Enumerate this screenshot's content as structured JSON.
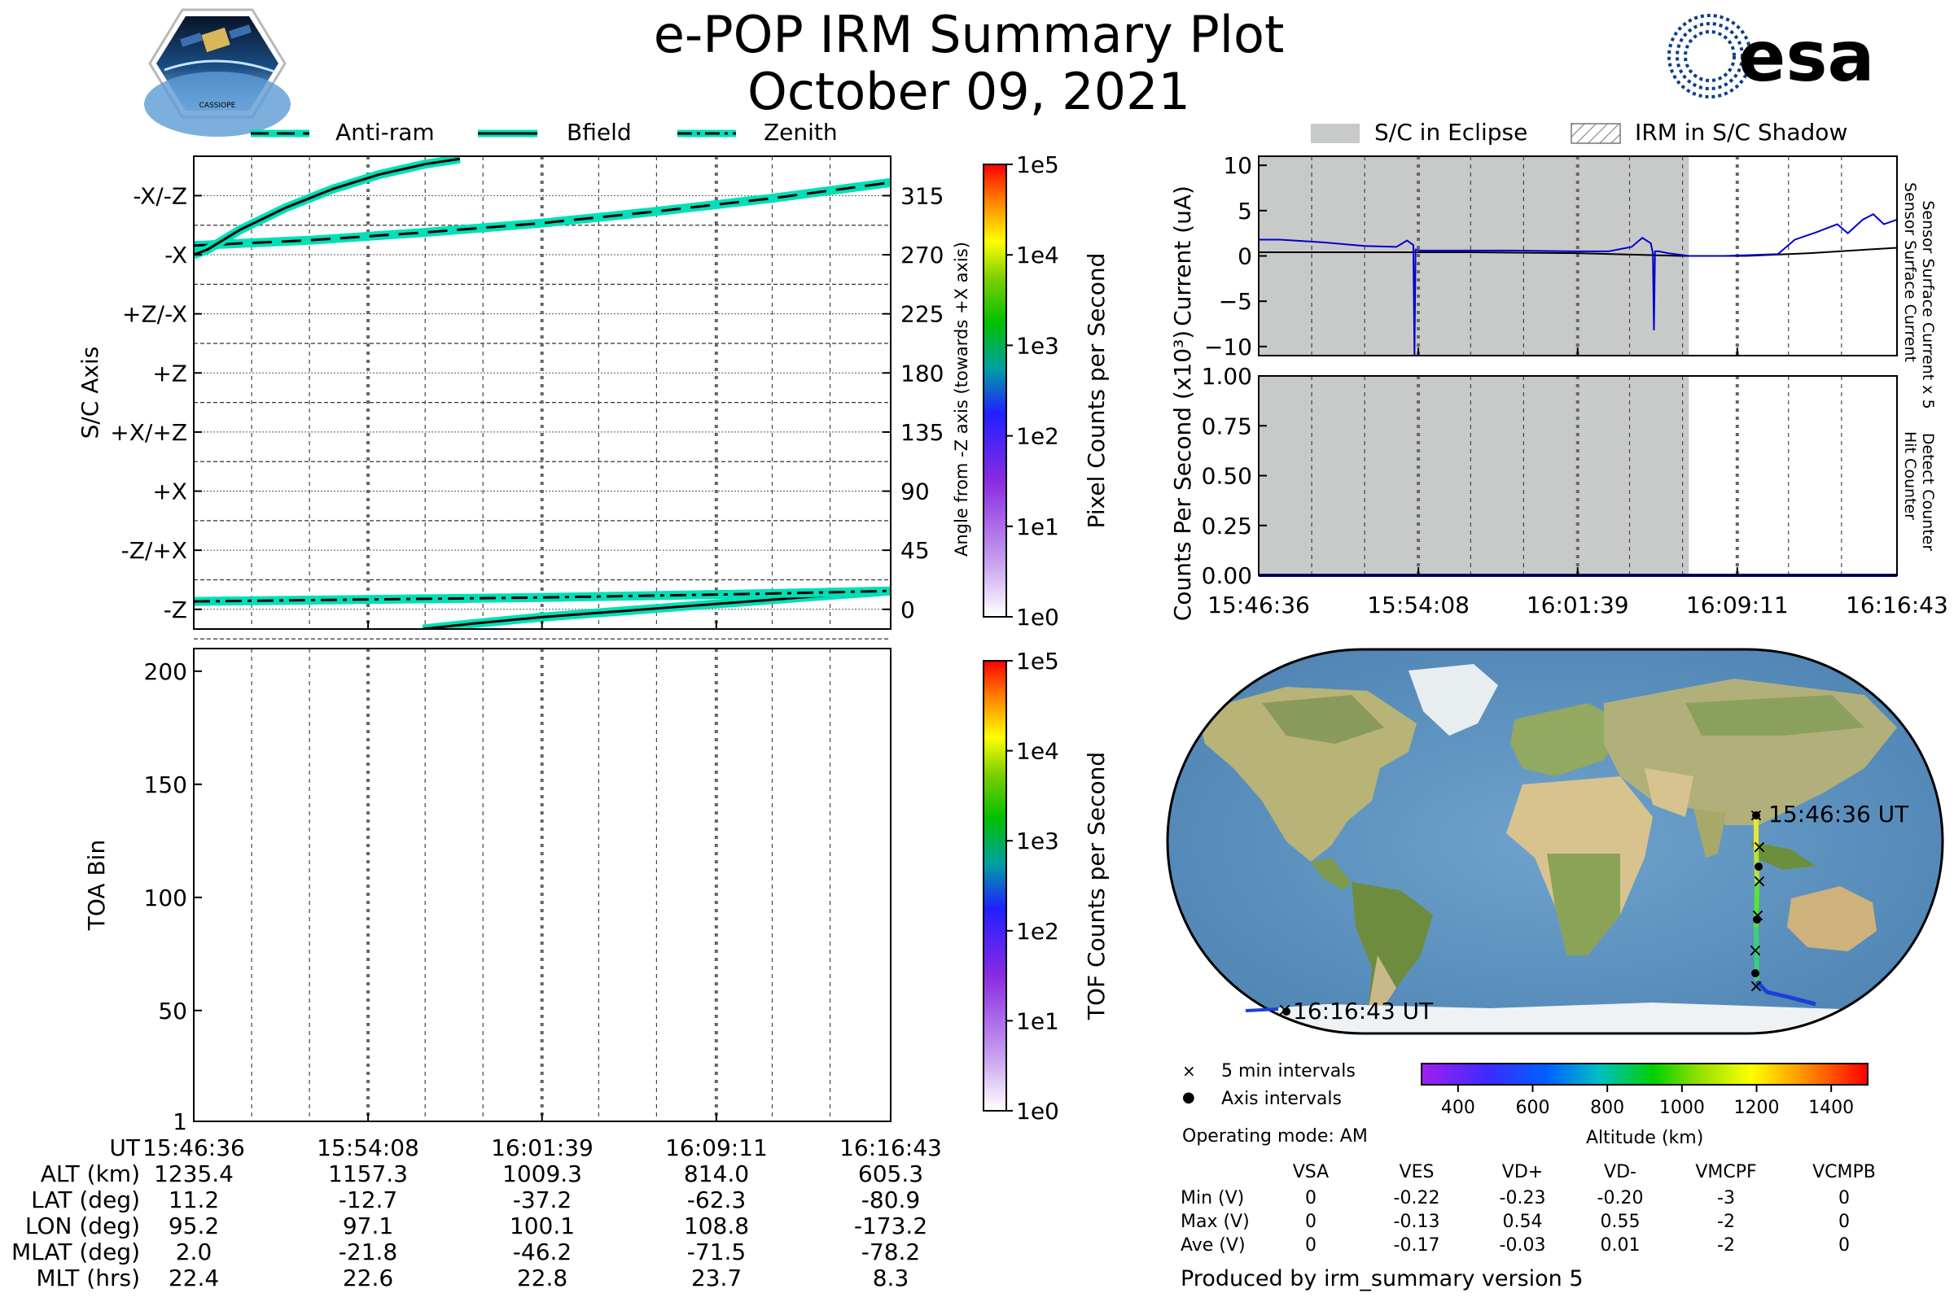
{
  "header": {
    "title": "e-POP IRM Summary Plot",
    "date": "October 09, 2021",
    "left_logo_text": "CASSIOPE",
    "right_logo_text": "esa"
  },
  "legend_top_left": [
    {
      "label": "Anti-ram",
      "style": "dashed"
    },
    {
      "label": "Bfield",
      "style": "solid"
    },
    {
      "label": "Zenith",
      "style": "dashdot"
    }
  ],
  "legend_top_right": [
    {
      "label": "S/C in Eclipse",
      "style": "gray"
    },
    {
      "label": "IRM in S/C Shadow",
      "style": "hatch"
    }
  ],
  "colors": {
    "trace_outline": "#00e0b8",
    "trace": "#000000",
    "eclipse": "#c8c9c9",
    "sensor_current_x5": "#0000cc",
    "detect_counter": "#0000cc"
  },
  "chart_data": [
    {
      "type": "line",
      "panel": "sc-axis",
      "ylabel": "S/C Axis",
      "ylabel_right": "Angle from -Z axis (towards +X axis)",
      "y_tick_labels_left": [
        "-X/-Z",
        "-X",
        "+Z/-X",
        "+Z",
        "+X/+Z",
        "+X",
        "-Z/+X",
        "-Z"
      ],
      "y_tick_labels_right": [
        "315",
        "270",
        "225",
        "180",
        "135",
        "90",
        "45",
        "0"
      ],
      "ylim": [
        -15,
        345
      ],
      "xlim": [
        0,
        30.12
      ],
      "x_unit": "minutes after 15:46:36",
      "series": [
        {
          "name": "Anti-ram",
          "style": "dashed",
          "x": [
            0,
            5,
            10,
            15,
            20,
            25,
            30.12
          ],
          "y": [
            277,
            281,
            287,
            294,
            303,
            313,
            325
          ]
        },
        {
          "name": "Bfield",
          "style": "solid",
          "segments": [
            {
              "x": [
                0,
                0.6,
                2,
                4,
                6,
                8,
                10,
                11.5
              ],
              "y": [
                270,
                274,
                289,
                306,
                320,
                331,
                339,
                343
              ]
            },
            {
              "x": [
                9.9,
                12,
                15,
                18,
                21,
                24,
                27,
                30.12
              ],
              "y": [
                -15,
                -11,
                -6,
                -2,
                2,
                6,
                10,
                14
              ]
            }
          ]
        },
        {
          "name": "Zenith",
          "style": "dashdot",
          "x": [
            0,
            5,
            10,
            15,
            20,
            25,
            30.12
          ],
          "y": [
            6,
            7,
            8,
            9,
            10.5,
            12,
            14
          ]
        }
      ],
      "colorbar": {
        "label": "Pixel Counts per Second",
        "ticks": [
          "1e0",
          "1e1",
          "1e2",
          "1e3",
          "1e4",
          "1e5"
        ]
      }
    },
    {
      "type": "heatmap",
      "panel": "toa",
      "ylabel": "TOA Bin",
      "y_ticks": [
        "1",
        "50",
        "100",
        "150",
        "200"
      ],
      "ylim": [
        1,
        210
      ],
      "values": [],
      "colorbar": {
        "label": "TOF Counts per Second",
        "ticks": [
          "1e0",
          "1e1",
          "1e2",
          "1e3",
          "1e4",
          "1e5"
        ]
      }
    },
    {
      "type": "line",
      "panel": "current",
      "ylabel": "Current (uA)",
      "right_labels": [
        {
          "text": "Sensor Surface Current x 5",
          "color": "#0000cc"
        },
        {
          "text": "Sensor Surface Current",
          "color": "#000000"
        }
      ],
      "y_ticks": [
        "10",
        "5",
        "0",
        "−5",
        "−10"
      ],
      "ylim": [
        -11,
        11
      ],
      "xlim": [
        0,
        30.12
      ],
      "eclipse_x": [
        0,
        20.3
      ],
      "series": [
        {
          "name": "Sensor Surface Current x 5",
          "x": [
            0,
            1,
            3,
            5,
            6.5,
            7,
            7.3,
            7.4,
            7.6,
            9,
            12,
            15,
            16.5,
            17.6,
            18.1,
            18.5,
            18.9,
            19.3,
            20.3,
            22,
            24.5,
            25.3,
            26.3,
            27.3,
            27.8,
            28.5,
            29,
            29.5,
            30.12
          ],
          "y": [
            1.8,
            1.8,
            1.5,
            1.1,
            1.0,
            1.7,
            1.2,
            0.7,
            0.6,
            0.6,
            0.6,
            0.5,
            0.5,
            1.0,
            2.0,
            1.4,
            0.5,
            0.3,
            0.0,
            0.0,
            0.2,
            1.8,
            2.6,
            3.5,
            2.5,
            4.0,
            4.6,
            3.5,
            4.0
          ]
        },
        {
          "name": "Sensor Surface Current",
          "x": [
            0,
            5,
            10,
            15,
            20,
            23,
            26,
            28,
            30.12
          ],
          "y": [
            0.4,
            0.4,
            0.4,
            0.3,
            0.0,
            0.0,
            0.3,
            0.6,
            0.9
          ]
        }
      ],
      "spikes": [
        {
          "x": 7.35,
          "y": -11
        },
        {
          "x": 18.65,
          "y": -8.2
        }
      ]
    },
    {
      "type": "line",
      "panel": "counts",
      "ylabel": "Counts Per Second (x10³)",
      "right_labels": [
        {
          "text": "Detect Counter",
          "color": "#0000cc"
        },
        {
          "text": "Hit Counter",
          "color": "#000000"
        }
      ],
      "y_ticks": [
        "1.00",
        "0.75",
        "0.50",
        "0.25",
        "0.00"
      ],
      "ylim": [
        0,
        1
      ],
      "xlim": [
        0,
        30.12
      ],
      "eclipse_x": [
        0,
        20.3
      ],
      "x_tick_labels": [
        "15:46:36",
        "15:54:08",
        "16:01:39",
        "16:09:11",
        "16:16:43"
      ],
      "series": [
        {
          "name": "Detect Counter",
          "x": [
            0,
            30.12
          ],
          "y": [
            0,
            0
          ]
        },
        {
          "name": "Hit Counter",
          "x": [
            0,
            30.12
          ],
          "y": [
            0,
            0
          ]
        }
      ]
    }
  ],
  "map": {
    "start_label": "15:46:36 UT",
    "end_label": "16:16:43 UT",
    "legend": [
      {
        "marker": "×",
        "label": "5 min intervals"
      },
      {
        "marker": "●",
        "label": "Axis intervals"
      }
    ],
    "altitude_colorbar": {
      "label": "Altitude (km)",
      "ticks": [
        "400",
        "600",
        "800",
        "1000",
        "1200",
        "1400"
      ]
    },
    "operating_mode": "Operating mode: AM"
  },
  "bottom_table": {
    "row_labels": [
      "UT",
      "ALT (km)",
      "LAT (deg)",
      "LON (deg)",
      "MLAT (deg)",
      "MLT (hrs)"
    ],
    "columns": [
      [
        "15:46:36",
        "1235.4",
        "11.2",
        "95.2",
        "2.0",
        "22.4"
      ],
      [
        "15:54:08",
        "1157.3",
        "-12.7",
        "97.1",
        "-21.8",
        "22.6"
      ],
      [
        "16:01:39",
        "1009.3",
        "-37.2",
        "100.1",
        "-46.2",
        "22.8"
      ],
      [
        "16:09:11",
        "814.0",
        "-62.3",
        "108.8",
        "-71.5",
        "23.7"
      ],
      [
        "16:16:43",
        "605.3",
        "-80.9",
        "-173.2",
        "-78.2",
        "8.3"
      ]
    ]
  },
  "voltage_table": {
    "headers": [
      "VSA",
      "VES",
      "VD+",
      "VD-",
      "VMCPF",
      "VCMPB"
    ],
    "rows": [
      {
        "label": "Min (V)",
        "values": [
          "0",
          "-0.22",
          "-0.23",
          "-0.20",
          "-3",
          "0"
        ]
      },
      {
        "label": "Max (V)",
        "values": [
          "0",
          "-0.13",
          "0.54",
          "0.55",
          "-2",
          "0"
        ]
      },
      {
        "label": "Ave (V)",
        "values": [
          "0",
          "-0.17",
          "-0.03",
          "0.01",
          "-2",
          "0"
        ]
      }
    ]
  },
  "footer": "Produced by irm_summary version 5"
}
